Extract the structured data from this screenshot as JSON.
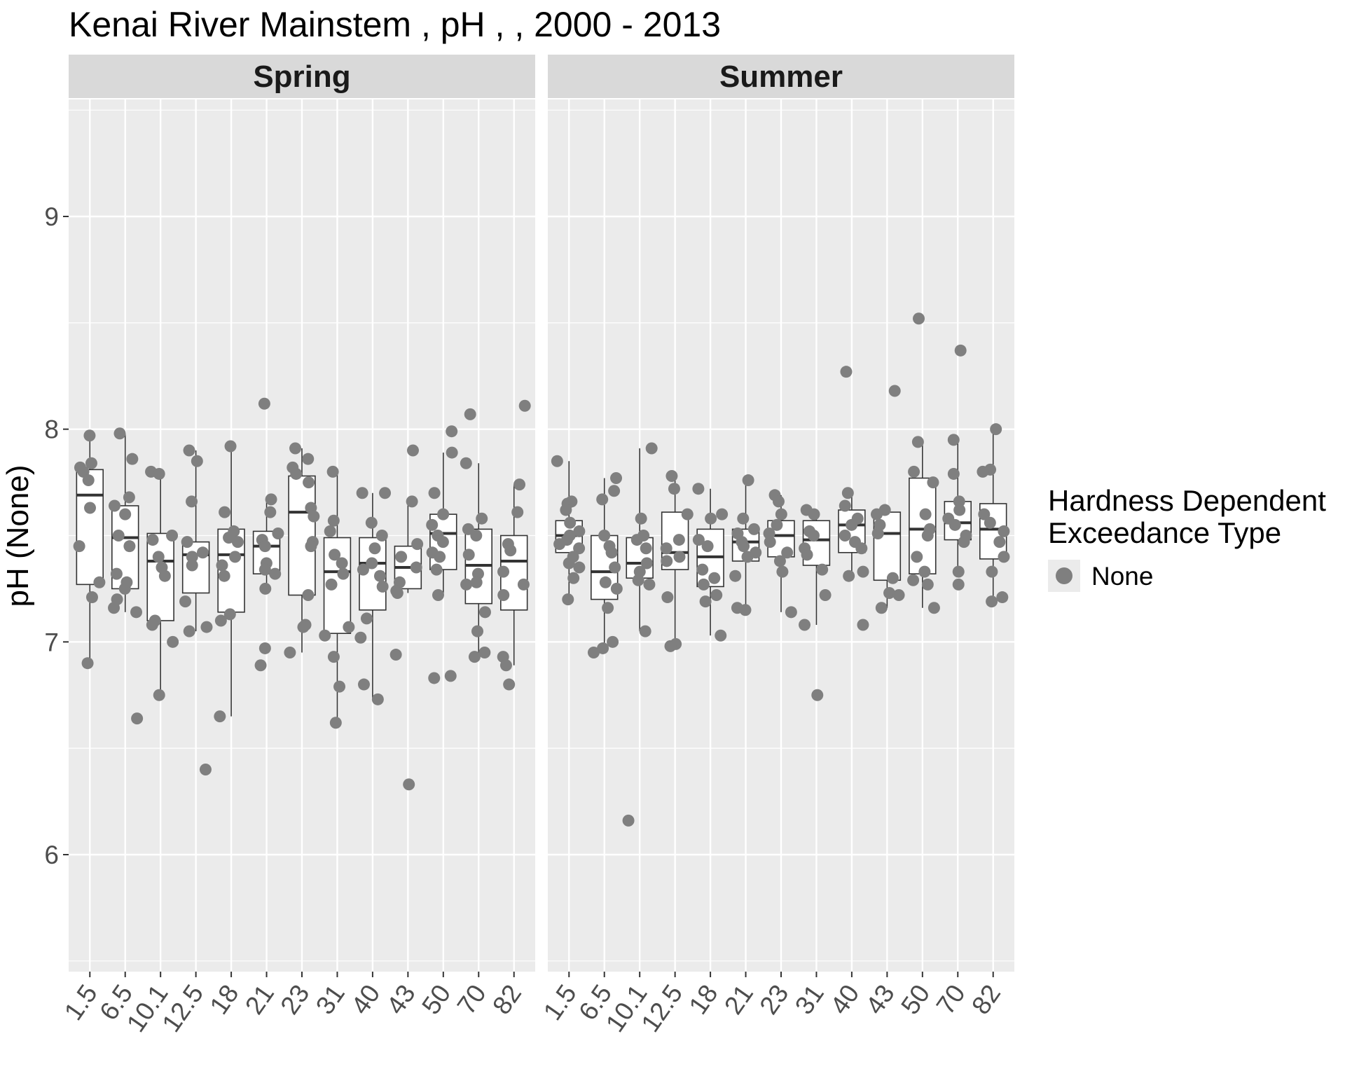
{
  "chart_data": {
    "type": "boxplot",
    "title": "Kenai River Mainstem , pH ,  , 2000 - 2013",
    "ylabel": "pH (None)",
    "xlabel": "",
    "ylim": [
      5.45,
      9.55
    ],
    "y_ticks": [
      6,
      7,
      8,
      9
    ],
    "grid": true,
    "legend": {
      "title_lines": [
        "Hardness Dependent",
        "Exceedance Type"
      ],
      "position": "right",
      "entries": [
        {
          "label": "None",
          "color": "#7f7f7f"
        }
      ]
    },
    "categories": [
      "1.5",
      "6.5",
      "10.1",
      "12.5",
      "18",
      "21",
      "23",
      "31",
      "40",
      "43",
      "50",
      "70",
      "82"
    ],
    "colors": {
      "points": "#7f7f7f",
      "panel_bg": "#ebebeb",
      "strip_bg": "#d9d9d9",
      "grid": "#ffffff",
      "box_line": "#333333"
    },
    "panels": [
      {
        "name": "Spring",
        "boxes": [
          {
            "q1": 7.27,
            "median": 7.69,
            "q3": 7.81,
            "lower": 6.9,
            "upper": 7.97
          },
          {
            "q1": 7.25,
            "median": 7.49,
            "q3": 7.64,
            "lower": 7.14,
            "upper": 7.98
          },
          {
            "q1": 7.1,
            "median": 7.38,
            "q3": 7.51,
            "lower": 6.75,
            "upper": 7.8
          },
          {
            "q1": 7.23,
            "median": 7.41,
            "q3": 7.47,
            "lower": 7.05,
            "upper": 7.9
          },
          {
            "q1": 7.14,
            "median": 7.41,
            "q3": 7.53,
            "lower": 6.65,
            "upper": 7.92
          },
          {
            "q1": 7.32,
            "median": 7.45,
            "q3": 7.52,
            "lower": 7.25,
            "upper": 7.67
          },
          {
            "q1": 7.22,
            "median": 7.61,
            "q3": 7.78,
            "lower": 6.95,
            "upper": 7.91
          },
          {
            "q1": 7.04,
            "median": 7.33,
            "q3": 7.49,
            "lower": 6.62,
            "upper": 7.8
          },
          {
            "q1": 7.15,
            "median": 7.37,
            "q3": 7.49,
            "lower": 6.73,
            "upper": 7.7
          },
          {
            "q1": 7.25,
            "median": 7.35,
            "q3": 7.45,
            "lower": 7.23,
            "upper": 7.66
          },
          {
            "q1": 7.34,
            "median": 7.51,
            "q3": 7.6,
            "lower": 7.22,
            "upper": 7.89
          },
          {
            "q1": 7.18,
            "median": 7.36,
            "q3": 7.53,
            "lower": 6.93,
            "upper": 7.84
          },
          {
            "q1": 7.15,
            "median": 7.38,
            "q3": 7.5,
            "lower": 6.89,
            "upper": 7.74
          }
        ],
        "points": [
          [
            7.97,
            7.84,
            7.82,
            7.8,
            7.76,
            7.63,
            7.45,
            7.28,
            7.21,
            6.9
          ],
          [
            7.98,
            7.86,
            7.68,
            7.64,
            7.6,
            7.5,
            7.45,
            7.32,
            7.28,
            7.25,
            7.2,
            7.16,
            7.14,
            6.64
          ],
          [
            7.8,
            7.79,
            7.5,
            7.48,
            7.4,
            7.35,
            7.31,
            7.1,
            7.08,
            7.0,
            6.75
          ],
          [
            7.9,
            7.85,
            7.66,
            7.47,
            7.42,
            7.4,
            7.36,
            7.19,
            7.07,
            7.05,
            6.4
          ],
          [
            7.92,
            7.61,
            7.52,
            7.49,
            7.47,
            7.4,
            7.36,
            7.31,
            7.13,
            7.1,
            6.65
          ],
          [
            8.12,
            7.67,
            7.61,
            7.51,
            7.48,
            7.45,
            7.37,
            7.34,
            7.32,
            7.25,
            6.97,
            6.89
          ],
          [
            7.91,
            7.86,
            7.82,
            7.79,
            7.75,
            7.63,
            7.59,
            7.47,
            7.45,
            7.22,
            7.08,
            7.07,
            6.95
          ],
          [
            7.8,
            7.57,
            7.52,
            7.41,
            7.37,
            7.32,
            7.27,
            7.07,
            7.03,
            6.93,
            6.79,
            6.62
          ],
          [
            7.7,
            7.7,
            7.56,
            7.5,
            7.44,
            7.37,
            7.34,
            7.31,
            7.26,
            7.11,
            7.02,
            6.8,
            6.73
          ],
          [
            7.9,
            7.66,
            7.46,
            7.4,
            7.35,
            7.28,
            7.24,
            7.23,
            6.94,
            6.33
          ],
          [
            7.99,
            7.89,
            7.7,
            7.6,
            7.55,
            7.5,
            7.47,
            7.42,
            7.4,
            7.34,
            7.22,
            6.84,
            6.83
          ],
          [
            8.07,
            7.84,
            7.58,
            7.53,
            7.5,
            7.41,
            7.32,
            7.28,
            7.27,
            7.14,
            7.05,
            6.95,
            6.93
          ],
          [
            8.11,
            7.74,
            7.61,
            7.46,
            7.43,
            7.33,
            7.27,
            7.22,
            6.93,
            6.89,
            6.8
          ]
        ]
      },
      {
        "name": "Summer",
        "boxes": [
          {
            "q1": 7.42,
            "median": 7.5,
            "q3": 7.57,
            "lower": 7.2,
            "upper": 7.85
          },
          {
            "q1": 7.2,
            "median": 7.33,
            "q3": 7.5,
            "lower": 6.95,
            "upper": 7.77
          },
          {
            "q1": 7.3,
            "median": 7.37,
            "q3": 7.49,
            "lower": 7.05,
            "upper": 7.91
          },
          {
            "q1": 7.34,
            "median": 7.42,
            "q3": 7.61,
            "lower": 6.98,
            "upper": 7.78
          },
          {
            "q1": 7.26,
            "median": 7.4,
            "q3": 7.53,
            "lower": 7.03,
            "upper": 7.72
          },
          {
            "q1": 7.38,
            "median": 7.47,
            "q3": 7.53,
            "lower": 7.15,
            "upper": 7.76
          },
          {
            "q1": 7.4,
            "median": 7.5,
            "q3": 7.57,
            "lower": 7.14,
            "upper": 7.69
          },
          {
            "q1": 7.36,
            "median": 7.48,
            "q3": 7.57,
            "lower": 7.08,
            "upper": 7.62
          },
          {
            "q1": 7.42,
            "median": 7.55,
            "q3": 7.62,
            "lower": 7.31,
            "upper": 7.7
          },
          {
            "q1": 7.29,
            "median": 7.51,
            "q3": 7.61,
            "lower": 7.16,
            "upper": 7.62
          },
          {
            "q1": 7.32,
            "median": 7.53,
            "q3": 7.77,
            "lower": 7.16,
            "upper": 7.94
          },
          {
            "q1": 7.48,
            "median": 7.56,
            "q3": 7.66,
            "lower": 7.33,
            "upper": 7.95
          },
          {
            "q1": 7.39,
            "median": 7.53,
            "q3": 7.65,
            "lower": 7.19,
            "upper": 8.0
          }
        ],
        "points": [
          [
            7.85,
            7.66,
            7.65,
            7.62,
            7.56,
            7.52,
            7.5,
            7.48,
            7.46,
            7.44,
            7.4,
            7.37,
            7.35,
            7.3,
            7.2
          ],
          [
            7.77,
            7.71,
            7.67,
            7.5,
            7.45,
            7.42,
            7.35,
            7.28,
            7.25,
            7.16,
            7.0,
            6.97,
            6.95
          ],
          [
            7.91,
            7.58,
            7.5,
            7.48,
            7.44,
            7.37,
            7.33,
            7.29,
            7.27,
            7.05,
            6.16
          ],
          [
            7.78,
            7.72,
            7.6,
            7.48,
            7.44,
            7.4,
            7.38,
            7.21,
            6.99,
            6.98
          ],
          [
            7.72,
            7.6,
            7.58,
            7.48,
            7.45,
            7.34,
            7.3,
            7.27,
            7.22,
            7.19,
            7.03
          ],
          [
            7.76,
            7.58,
            7.53,
            7.51,
            7.47,
            7.45,
            7.42,
            7.4,
            7.31,
            7.16,
            7.15
          ],
          [
            7.69,
            7.66,
            7.6,
            7.55,
            7.51,
            7.47,
            7.42,
            7.38,
            7.33,
            7.14
          ],
          [
            7.62,
            7.6,
            7.52,
            7.5,
            7.44,
            7.41,
            7.34,
            7.22,
            7.08,
            6.75
          ],
          [
            8.27,
            7.7,
            7.64,
            7.58,
            7.55,
            7.5,
            7.47,
            7.44,
            7.33,
            7.31,
            7.08
          ],
          [
            8.18,
            7.62,
            7.6,
            7.55,
            7.51,
            7.3,
            7.23,
            7.22,
            7.16
          ],
          [
            8.52,
            7.94,
            7.8,
            7.75,
            7.6,
            7.53,
            7.5,
            7.4,
            7.33,
            7.29,
            7.27,
            7.16
          ],
          [
            8.37,
            7.95,
            7.79,
            7.66,
            7.62,
            7.58,
            7.55,
            7.5,
            7.47,
            7.33,
            7.27
          ],
          [
            8.0,
            7.81,
            7.8,
            7.6,
            7.56,
            7.52,
            7.47,
            7.4,
            7.33,
            7.21,
            7.19
          ]
        ]
      }
    ]
  }
}
